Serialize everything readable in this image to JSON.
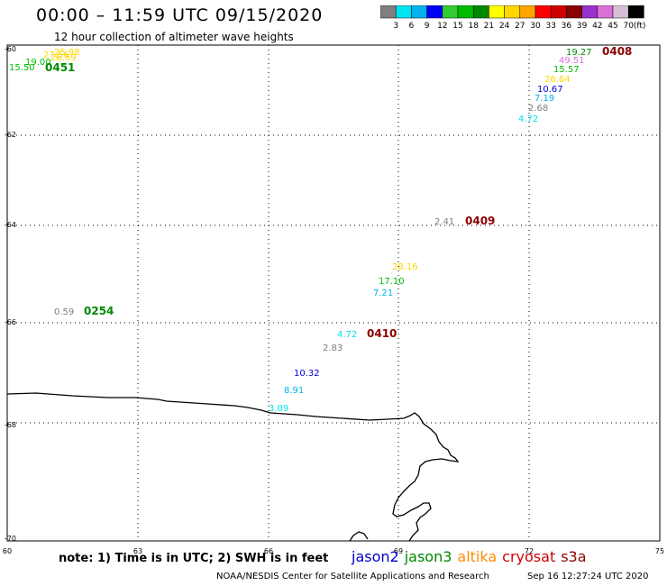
{
  "title": "00:00 – 11:59 UTC 09/15/2020",
  "subtitle": "12 hour collection of altimeter wave heights",
  "colorbar": {
    "ticks": [
      "3",
      "6",
      "9",
      "12",
      "15",
      "18",
      "21",
      "24",
      "27",
      "30",
      "33",
      "36",
      "39",
      "42",
      "45",
      "70"
    ],
    "unit": "(ft)",
    "colors": [
      "#7f7f7f",
      "#00e5ee",
      "#00b2ee",
      "#0000ff",
      "#33cc33",
      "#00bb00",
      "#008800",
      "#ffff00",
      "#ffd700",
      "#ffa500",
      "#ff0000",
      "#cc0000",
      "#8b0000",
      "#9932cc",
      "#da70d6",
      "#d8bfd8",
      "#000000"
    ]
  },
  "map": {
    "lat_labels": [
      "-60",
      "-62",
      "-64",
      "-66",
      "-68",
      "-70"
    ],
    "lon_labels": [
      "60",
      "63",
      "66",
      "69",
      "72",
      "75"
    ]
  },
  "labels": [
    {
      "text": "25.98",
      "color": "#ffd700"
    },
    {
      "text": "27.56",
      "color": "#ffd700"
    },
    {
      "text": "26.59",
      "color": "#ffd700"
    },
    {
      "text": "19.00",
      "color": "#00bb00"
    },
    {
      "text": "15.50",
      "color": "#00bb00"
    },
    {
      "text": "0451",
      "color": "#008800"
    },
    {
      "text": "19.27",
      "color": "#008800"
    },
    {
      "text": "0408",
      "color": "#8b0000"
    },
    {
      "text": "49.51",
      "color": "#da70d6"
    },
    {
      "text": "15.57",
      "color": "#00bb00"
    },
    {
      "text": "26.64",
      "color": "#ffd700"
    },
    {
      "text": "10.67",
      "color": "#0000cc"
    },
    {
      "text": "7.19",
      "color": "#00b2ee"
    },
    {
      "text": "2.68",
      "color": "#7f7f7f"
    },
    {
      "text": "4.72",
      "color": "#00e5ee"
    },
    {
      "text": "2.41",
      "color": "#7f7f7f"
    },
    {
      "text": "0409",
      "color": "#8b0000"
    },
    {
      "text": "28.16",
      "color": "#ffd700"
    },
    {
      "text": "17.10",
      "color": "#00bb00"
    },
    {
      "text": "7.21",
      "color": "#00b2ee"
    },
    {
      "text": "0.59",
      "color": "#7f7f7f"
    },
    {
      "text": "0254",
      "color": "#008800"
    },
    {
      "text": "4.72",
      "color": "#00e5ee"
    },
    {
      "text": "0410",
      "color": "#8b0000"
    },
    {
      "text": "2.83",
      "color": "#7f7f7f"
    },
    {
      "text": "10.32",
      "color": "#0000cc"
    },
    {
      "text": "8.91",
      "color": "#00b2ee"
    },
    {
      "text": "3.09",
      "color": "#00e5ee"
    }
  ],
  "note": "note: 1) Time is in UTC; 2) SWH is in feet",
  "legend": [
    {
      "name": "jason2",
      "color": "#0000cc"
    },
    {
      "name": "jason3",
      "color": "#008800"
    },
    {
      "name": "altika",
      "color": "#ff8c00"
    },
    {
      "name": "cryosat",
      "color": "#cc0000"
    },
    {
      "name": "s3a",
      "color": "#8b0000"
    }
  ],
  "credit": "NOAA/NESDIS Center for Satellite Applications and Research",
  "credit_time": "Sep 16 12:27:24 UTC 2020"
}
